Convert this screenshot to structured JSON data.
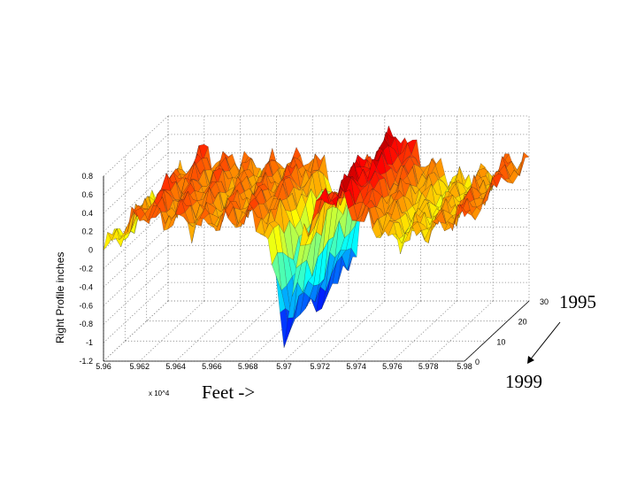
{
  "chart_data": {
    "type": "surface",
    "title": "",
    "xlabel": "Feet ->",
    "ylabel": "",
    "zlabel": "Right Profile  inches",
    "x_multiplier": "x 10^4",
    "x_ticks": [
      "5.96",
      "5.962",
      "5.964",
      "5.966",
      "5.968",
      "5.97",
      "5.972",
      "5.974",
      "5.976",
      "5.978",
      "5.98"
    ],
    "y_ticks": [
      "0",
      "10",
      "20",
      "30"
    ],
    "z_ticks": [
      "-1.2",
      "-1",
      "-0.8",
      "-0.6",
      "-0.4",
      "-0.2",
      "0",
      "0.2",
      "0.4",
      "0.6",
      "0.8"
    ],
    "xlim": [
      59600,
      59800
    ],
    "ylim": [
      0,
      30
    ],
    "zlim": [
      -1.2,
      0.8
    ],
    "colormap": "jet",
    "grid": true,
    "annotations": {
      "year_back": "1995",
      "year_front": "1999"
    },
    "surface_profile": {
      "x_feet": [
        59600,
        59610,
        59620,
        59630,
        59640,
        59650,
        59660,
        59670,
        59680,
        59690,
        59700,
        59705,
        59710,
        59720,
        59730,
        59740,
        59750,
        59760,
        59770,
        59780,
        59790,
        59800
      ],
      "z_inches": [
        0.0,
        0.2,
        0.4,
        0.3,
        0.35,
        0.25,
        0.3,
        0.3,
        0.35,
        0.2,
        -0.9,
        -0.5,
        0.2,
        0.5,
        0.6,
        0.35,
        0.25,
        0.1,
        0.15,
        0.2,
        0.3,
        0.35
      ]
    }
  }
}
